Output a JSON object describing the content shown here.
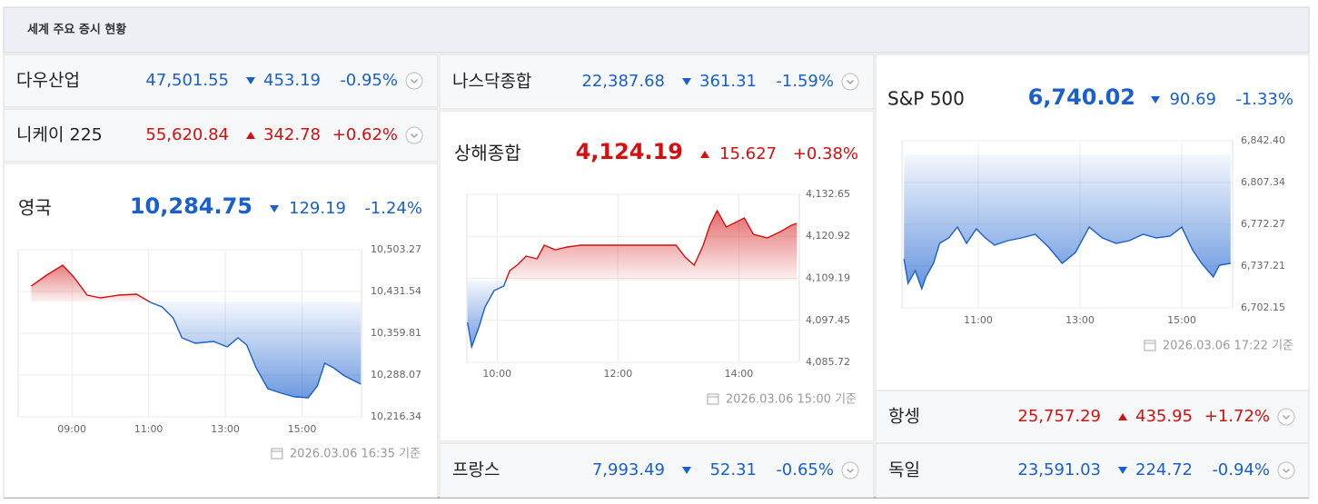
{
  "header": {
    "title": "세계 주요 증시 현황"
  },
  "colors": {
    "up": "#d40f0f",
    "down": "#1a5fce"
  },
  "indices": [
    {
      "name": "다우산업",
      "price": "47,501.55",
      "change": "453.19",
      "change_pct": "-0.95%",
      "direction": "down"
    },
    {
      "name": "니케이 225",
      "price": "55,620.84",
      "change": "342.78",
      "change_pct": "+0.62%",
      "direction": "up"
    },
    {
      "name": "영국",
      "price": "10,284.75",
      "change": "129.19",
      "change_pct": "-1.24%",
      "direction": "down",
      "timestamp": "2026.03.06 16:35 기준",
      "chart_data": {
        "type": "line",
        "x": [
          7.94,
          8.34,
          8.76,
          9.05,
          9.4,
          9.75,
          10.22,
          10.69,
          11.05,
          11.35,
          11.64,
          11.87,
          12.22,
          12.69,
          13.05,
          13.33,
          13.56,
          13.8,
          14.11,
          14.46,
          14.81,
          15.16,
          15.4,
          15.59,
          15.82,
          16.11,
          16.39,
          16.53
        ],
        "values": [
          10440.9,
          10459.6,
          10476.8,
          10456.5,
          10425.3,
          10420.6,
          10425.3,
          10426.9,
          10412.8,
          10405.0,
          10386.3,
          10352.0,
          10342.6,
          10345.8,
          10336.4,
          10352.0,
          10339.5,
          10300.5,
          10264.7,
          10256.9,
          10250.6,
          10249.1,
          10269.4,
          10308.3,
          10300.5,
          10286.5,
          10277.2,
          10272.5
        ],
        "xlim": [
          7.6,
          16.55
        ],
        "xticks": [
          {
            "value": 9,
            "label": "09:00"
          },
          {
            "value": 11,
            "label": "11:00"
          },
          {
            "value": 13,
            "label": "13:00"
          },
          {
            "value": 15,
            "label": "15:00"
          }
        ],
        "ylim": [
          10216.34,
          10503.27
        ],
        "yticks": [
          {
            "value": 10216.34,
            "label": "10,216.34"
          },
          {
            "value": 10288.07,
            "label": "10,288.07"
          },
          {
            "value": 10359.81,
            "label": "10,359.81"
          },
          {
            "value": 10431.54,
            "label": "10,431.54"
          },
          {
            "value": 10503.27,
            "label": "10,503.27"
          }
        ],
        "grid": true
      }
    },
    {
      "name": "나스닥종합",
      "price": "22,387.68",
      "change": "361.31",
      "change_pct": "-1.59%",
      "direction": "down"
    },
    {
      "name": "상해종합",
      "price": "4,124.19",
      "change": "15.627",
      "change_pct": "+0.38%",
      "direction": "up",
      "timestamp": "2026.03.06 15:00 기준",
      "chart_data": {
        "type": "line",
        "x": [
          9.51,
          9.58,
          9.7,
          9.8,
          9.95,
          10.11,
          10.21,
          10.33,
          10.48,
          10.66,
          10.78,
          10.96,
          11.16,
          11.38,
          12.29,
          12.96,
          13.11,
          13.26,
          13.41,
          13.52,
          13.64,
          13.79,
          13.94,
          14.09,
          14.24,
          14.47,
          14.69,
          14.87,
          14.96
        ],
        "values": [
          4096.88,
          4090.03,
          4095.61,
          4101.19,
          4105.76,
          4107.03,
          4111.34,
          4112.86,
          4115.4,
          4114.64,
          4118.45,
          4117.18,
          4117.94,
          4118.45,
          4118.45,
          4118.45,
          4115.15,
          4112.86,
          4118.45,
          4124.03,
          4128.09,
          4123.52,
          4124.79,
          4126.06,
          4121.49,
          4120.47,
          4122.25,
          4124.03,
          4124.53
        ],
        "xlim": [
          9.5,
          15
        ],
        "xticks": [
          {
            "value": 10,
            "label": "10:00"
          },
          {
            "value": 12,
            "label": "12:00"
          },
          {
            "value": 14,
            "label": "14:00"
          }
        ],
        "ylim": [
          4085.72,
          4132.65
        ],
        "yticks": [
          {
            "value": 4085.72,
            "label": "4,085.72"
          },
          {
            "value": 4097.45,
            "label": "4,097.45"
          },
          {
            "value": 4109.19,
            "label": "4,109.19"
          },
          {
            "value": 4120.92,
            "label": "4,120.92"
          },
          {
            "value": 4132.65,
            "label": "4,132.65"
          }
        ],
        "grid": true
      }
    },
    {
      "name": "프랑스",
      "price": "7,993.49",
      "change": "52.31",
      "change_pct": "-0.65%",
      "direction": "down"
    },
    {
      "name": "S&P 500",
      "price": "6,740.02",
      "change": "90.69",
      "change_pct": "-1.33%",
      "direction": "down",
      "timestamp": "2026.03.06 17:22 기준",
      "chart_data": {
        "type": "line",
        "x": [
          9.54,
          9.62,
          9.76,
          9.89,
          9.97,
          10.12,
          10.24,
          10.42,
          10.59,
          10.77,
          10.96,
          11.14,
          11.32,
          11.58,
          11.85,
          12.12,
          12.38,
          12.65,
          12.91,
          13.18,
          13.44,
          13.71,
          13.97,
          14.24,
          14.5,
          14.77,
          15.0,
          15.21,
          15.39,
          15.62,
          15.74,
          15.96
        ],
        "values": [
          6743.31,
          6722.73,
          6733.4,
          6718.16,
          6728.07,
          6739.5,
          6756.27,
          6760.84,
          6769.99,
          6756.27,
          6768.46,
          6760.84,
          6754.74,
          6758.55,
          6760.84,
          6763.89,
          6753.22,
          6739.5,
          6748.65,
          6769.99,
          6760.84,
          6756.27,
          6758.55,
          6763.89,
          6760.84,
          6762.36,
          6769.99,
          6750.93,
          6739.5,
          6728.07,
          6737.97,
          6739.5
        ],
        "xlim": [
          9.5,
          16
        ],
        "xticks": [
          {
            "value": 11,
            "label": "11:00"
          },
          {
            "value": 13,
            "label": "13:00"
          },
          {
            "value": 15,
            "label": "15:00"
          }
        ],
        "ylim": [
          6702.15,
          6842.4
        ],
        "yticks": [
          {
            "value": 6702.15,
            "label": "6,702.15"
          },
          {
            "value": 6737.21,
            "label": "6,737.21"
          },
          {
            "value": 6772.27,
            "label": "6,772.27"
          },
          {
            "value": 6807.34,
            "label": "6,807.34"
          },
          {
            "value": 6842.4,
            "label": "6,842.40"
          }
        ],
        "grid": true
      }
    },
    {
      "name": "항셍",
      "price": "25,757.29",
      "change": "435.95",
      "change_pct": "+1.72%",
      "direction": "up"
    },
    {
      "name": "독일",
      "price": "23,591.03",
      "change": "224.72",
      "change_pct": "-0.94%",
      "direction": "down"
    }
  ]
}
